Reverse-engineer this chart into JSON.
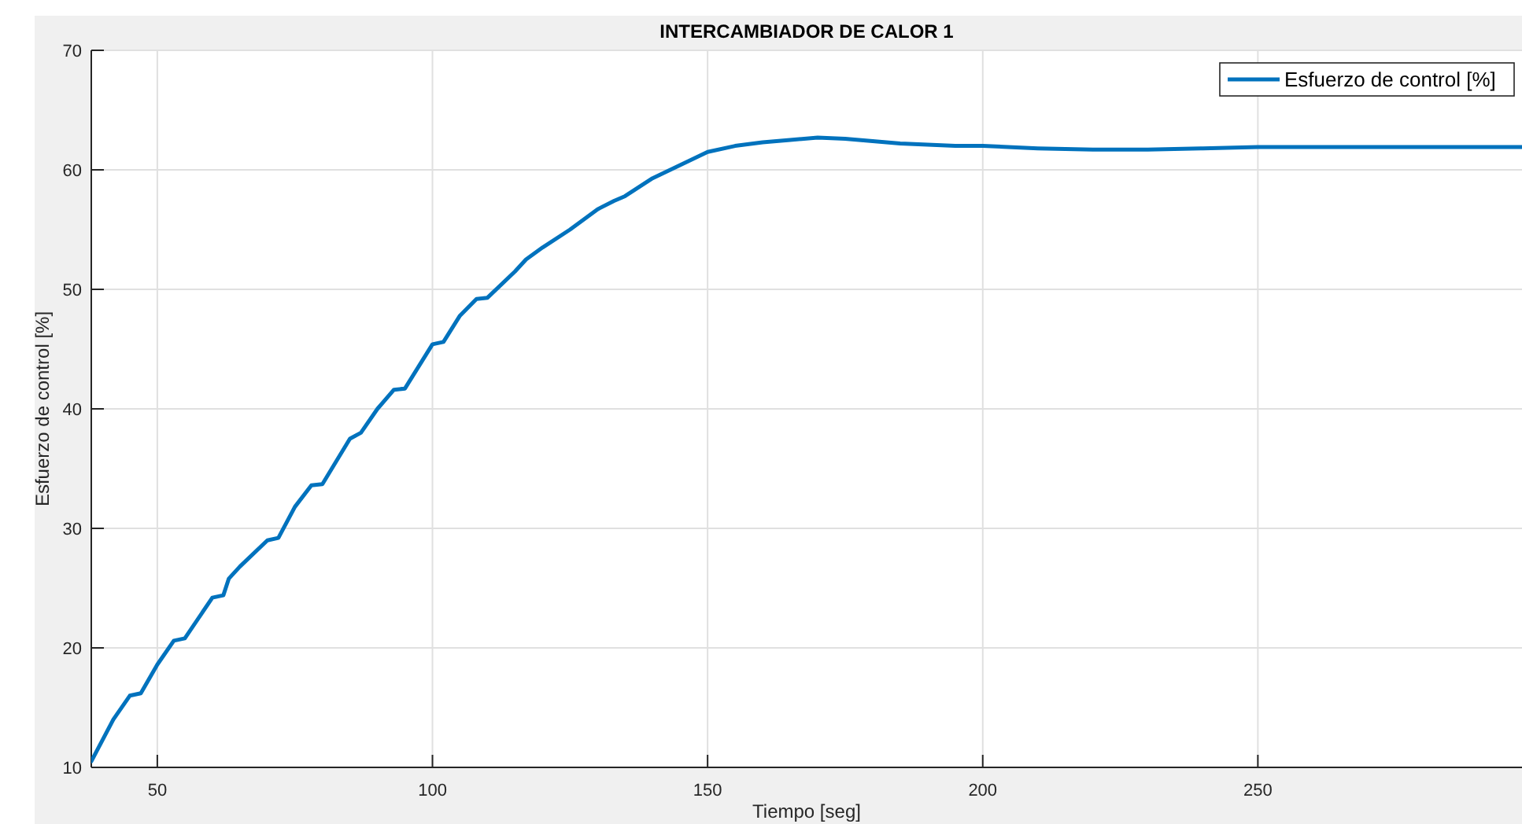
{
  "chart_data": {
    "type": "line",
    "title": "INTERCAMBIADOR DE CALOR 1",
    "xlabel": "Tiempo [seg]",
    "ylabel": "Esfuerzo de control [%]",
    "xlim": [
      38,
      298
    ],
    "ylim": [
      10,
      70
    ],
    "xticks": [
      50,
      100,
      150,
      200,
      250
    ],
    "yticks": [
      10,
      20,
      30,
      40,
      50,
      60,
      70
    ],
    "grid": true,
    "legend": "top right",
    "line_style": "solid",
    "marker": "none",
    "series": [
      {
        "name": "Esfuerzo de control [%]",
        "color": "#0072bd",
        "x": [
          38,
          42,
          45,
          47,
          50,
          53,
          55,
          60,
          62,
          63,
          65,
          70,
          72,
          75,
          78,
          80,
          85,
          87,
          90,
          93,
          95,
          100,
          102,
          105,
          108,
          110,
          115,
          117,
          120,
          125,
          130,
          133,
          135,
          140,
          145,
          150,
          155,
          160,
          165,
          170,
          175,
          180,
          185,
          190,
          195,
          200,
          210,
          220,
          230,
          240,
          250,
          260,
          270,
          280,
          298
        ],
        "values": [
          10.5,
          14,
          16,
          16.2,
          18.6,
          20.6,
          20.8,
          24.2,
          24.4,
          25.8,
          26.8,
          29,
          29.2,
          31.8,
          33.6,
          33.7,
          37.5,
          38,
          40,
          41.6,
          41.7,
          45.4,
          45.6,
          47.8,
          49.2,
          49.3,
          51.5,
          52.5,
          53.5,
          55,
          56.7,
          57.4,
          57.8,
          59.3,
          60.4,
          61.5,
          62,
          62.3,
          62.5,
          62.7,
          62.6,
          62.4,
          62.2,
          62.1,
          62,
          62,
          61.8,
          61.7,
          61.7,
          61.8,
          61.9,
          61.9,
          61.9,
          61.9,
          61.9
        ]
      }
    ]
  }
}
